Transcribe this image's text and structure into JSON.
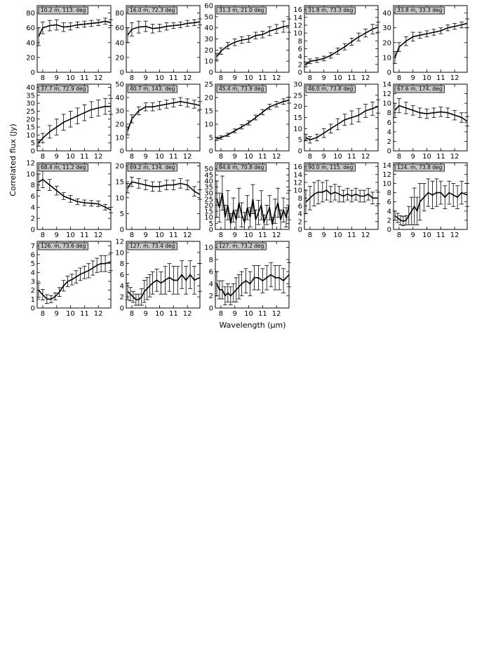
{
  "figure": {
    "xlabel": "Wavelength (μm)",
    "ylabel": "Correlated flux (Jy)",
    "x_ticks": [
      8,
      9,
      10,
      11,
      12
    ]
  },
  "chart_data": [
    {
      "type": "line",
      "label": "10.2 m, 113. deg",
      "xlim": [
        7.6,
        12.9
      ],
      "ylim": [
        0,
        90
      ],
      "y_ticks": [
        0,
        20,
        40,
        60,
        80
      ],
      "x": [
        7.7,
        8.0,
        8.5,
        9.0,
        9.5,
        10.0,
        10.5,
        11.0,
        11.5,
        12.0,
        12.5,
        12.9
      ],
      "y": [
        48,
        60,
        63,
        64,
        61,
        62,
        64,
        65,
        66,
        67,
        69,
        67
      ],
      "err": [
        12,
        8,
        7,
        7,
        6,
        5,
        4,
        4,
        4,
        4,
        4,
        4
      ]
    },
    {
      "type": "line",
      "label": "16.0 m, 72.3 deg",
      "xlim": [
        7.6,
        12.9
      ],
      "ylim": [
        0,
        90
      ],
      "y_ticks": [
        0,
        20,
        40,
        60,
        80
      ],
      "x": [
        7.7,
        8.0,
        8.5,
        9.0,
        9.5,
        10.0,
        10.5,
        11.0,
        11.5,
        12.0,
        12.5,
        12.9
      ],
      "y": [
        50,
        58,
        61,
        62,
        59,
        60,
        62,
        63,
        64,
        66,
        67,
        68
      ],
      "err": [
        10,
        9,
        8,
        7,
        6,
        5,
        5,
        4,
        4,
        4,
        4,
        4
      ]
    },
    {
      "type": "line",
      "label": "31.3 m, 21.0 deg",
      "xlim": [
        7.6,
        12.9
      ],
      "ylim": [
        0,
        60
      ],
      "y_ticks": [
        0,
        10,
        20,
        30,
        40,
        50,
        60
      ],
      "x": [
        7.7,
        8.0,
        8.5,
        9.0,
        9.5,
        10.0,
        10.5,
        11.0,
        11.5,
        12.0,
        12.5,
        12.9
      ],
      "y": [
        14,
        19,
        24,
        27,
        29,
        30,
        33,
        34,
        37,
        39,
        41,
        42
      ],
      "err": [
        3,
        3,
        3,
        3,
        3,
        3,
        3,
        3,
        4,
        4,
        5,
        6
      ]
    },
    {
      "type": "line",
      "label": "31.8 m, 73.3 deg",
      "xlim": [
        7.6,
        12.9
      ],
      "ylim": [
        0,
        17
      ],
      "y_ticks": [
        0,
        2,
        4,
        6,
        8,
        10,
        12,
        14,
        16
      ],
      "x": [
        7.7,
        8.0,
        8.5,
        9.0,
        9.5,
        10.0,
        10.5,
        11.0,
        11.5,
        12.0,
        12.5,
        12.9
      ],
      "y": [
        2.0,
        2.8,
        3.1,
        3.5,
        4.3,
        5.4,
        6.5,
        7.8,
        9.0,
        10.0,
        11.0,
        11.5
      ],
      "err": [
        0.6,
        0.6,
        0.6,
        0.6,
        0.7,
        0.8,
        0.8,
        0.9,
        1.0,
        1.0,
        1.2,
        1.3
      ]
    },
    {
      "type": "line",
      "label": "33.8 m, 33.3 deg",
      "xlim": [
        7.6,
        12.9
      ],
      "ylim": [
        0,
        45
      ],
      "y_ticks": [
        0,
        10,
        20,
        30,
        40
      ],
      "x": [
        7.7,
        8.0,
        8.5,
        9.0,
        9.5,
        10.0,
        10.5,
        11.0,
        11.5,
        12.0,
        12.5,
        12.9
      ],
      "y": [
        10,
        17,
        21,
        24,
        25,
        26,
        27,
        28,
        30,
        31,
        32,
        33
      ],
      "err": [
        4,
        3,
        3,
        3,
        2,
        2,
        2,
        2,
        2,
        2,
        2,
        3
      ]
    },
    {
      "type": "line",
      "label": "37.7 m, 72.9 deg",
      "xlim": [
        7.6,
        12.9
      ],
      "ylim": [
        0,
        42
      ],
      "y_ticks": [
        0,
        5,
        10,
        15,
        20,
        25,
        30,
        35,
        40
      ],
      "x": [
        7.7,
        8.0,
        8.5,
        9.0,
        9.5,
        10.0,
        10.5,
        11.0,
        11.5,
        12.0,
        12.5,
        12.9
      ],
      "y": [
        5,
        8,
        12,
        15,
        18,
        20,
        22,
        24,
        26,
        27,
        28,
        28
      ],
      "err": [
        2,
        3,
        4,
        5,
        5,
        5,
        5,
        5,
        5,
        5,
        5,
        5
      ]
    },
    {
      "type": "line",
      "label": "40.7 m, 143. deg",
      "xlim": [
        7.6,
        12.9
      ],
      "ylim": [
        0,
        50
      ],
      "y_ticks": [
        0,
        10,
        20,
        30,
        40,
        50
      ],
      "x": [
        7.7,
        8.0,
        8.5,
        9.0,
        9.5,
        10.0,
        10.5,
        11.0,
        11.5,
        12.0,
        12.5,
        12.9
      ],
      "y": [
        15,
        24,
        30,
        33,
        33,
        34,
        35,
        36,
        37,
        36,
        35,
        34
      ],
      "err": [
        3,
        3,
        3,
        3,
        3,
        3,
        3,
        3,
        3,
        3,
        3,
        3
      ]
    },
    {
      "type": "line",
      "label": "45.4 m, 73.9 deg",
      "xlim": [
        7.6,
        12.9
      ],
      "ylim": [
        0,
        25
      ],
      "y_ticks": [
        0,
        5,
        10,
        15,
        20,
        25
      ],
      "x": [
        7.7,
        8.0,
        8.5,
        9.0,
        9.5,
        10.0,
        10.5,
        11.0,
        11.5,
        12.0,
        12.5,
        12.9
      ],
      "y": [
        4.5,
        5.0,
        6.0,
        7.5,
        9.0,
        10.5,
        12.5,
        14.5,
        16.5,
        17.5,
        18.5,
        19.0
      ],
      "err": [
        0.6,
        0.6,
        0.6,
        0.7,
        0.8,
        0.8,
        0.9,
        1.0,
        1.0,
        1.0,
        1.0,
        1.1
      ]
    },
    {
      "type": "line",
      "label": "46.0 m, 73.8 deg",
      "xlim": [
        7.6,
        12.9
      ],
      "ylim": [
        0,
        30
      ],
      "y_ticks": [
        0,
        5,
        10,
        15,
        20,
        25,
        30
      ],
      "x": [
        7.7,
        8.0,
        8.5,
        9.0,
        9.5,
        10.0,
        10.5,
        11.0,
        11.5,
        12.0,
        12.5,
        12.9
      ],
      "y": [
        6,
        5,
        6,
        8,
        10,
        12,
        14,
        15,
        16,
        18,
        19,
        20
      ],
      "err": [
        1.5,
        1.5,
        1.5,
        2,
        2,
        2.5,
        2.5,
        3,
        3,
        3,
        3,
        3
      ]
    },
    {
      "type": "line",
      "label": "67.6 m, 174. deg",
      "xlim": [
        7.6,
        12.9
      ],
      "ylim": [
        0,
        14
      ],
      "y_ticks": [
        0,
        2,
        4,
        6,
        8,
        10,
        12,
        14
      ],
      "x": [
        7.7,
        8.0,
        8.5,
        9.0,
        9.5,
        10.0,
        10.5,
        11.0,
        11.5,
        12.0,
        12.5,
        12.9
      ],
      "y": [
        8.5,
        9.5,
        9.0,
        8.5,
        8.0,
        7.8,
        8.0,
        8.2,
        8.0,
        7.5,
        7.0,
        6.2
      ],
      "err": [
        1.5,
        1.5,
        1.2,
        1.0,
        1.0,
        1.0,
        1.0,
        1.0,
        1.0,
        1.0,
        1.0,
        1.0
      ]
    },
    {
      "type": "line",
      "label": "68.4 m, 11.2 deg",
      "xlim": [
        7.6,
        12.9
      ],
      "ylim": [
        0,
        12
      ],
      "y_ticks": [
        0,
        2,
        4,
        6,
        8,
        10,
        12
      ],
      "x": [
        7.7,
        8.0,
        8.5,
        9.0,
        9.5,
        10.0,
        10.5,
        11.0,
        11.5,
        12.0,
        12.5,
        12.9
      ],
      "y": [
        8.5,
        9.0,
        8.0,
        7.0,
        6.0,
        5.5,
        5.0,
        4.8,
        4.7,
        4.6,
        4.0,
        3.5
      ],
      "err": [
        1.5,
        1.5,
        1.0,
        0.8,
        0.6,
        0.6,
        0.5,
        0.5,
        0.5,
        0.5,
        0.5,
        0.5
      ]
    },
    {
      "type": "line",
      "label": "69.2 m, 134. deg",
      "xlim": [
        7.6,
        12.9
      ],
      "ylim": [
        0,
        21
      ],
      "y_ticks": [
        0,
        5,
        10,
        15,
        20
      ],
      "x": [
        7.7,
        8.0,
        8.5,
        9.0,
        9.5,
        10.0,
        10.5,
        11.0,
        11.5,
        12.0,
        12.5,
        12.9
      ],
      "y": [
        13,
        15,
        14.5,
        14,
        13.5,
        13.5,
        14,
        14,
        14.5,
        14,
        12,
        11
      ],
      "err": [
        1.5,
        1.5,
        1.5,
        1.5,
        1.5,
        1.5,
        1.5,
        1.5,
        1.5,
        1.5,
        1.5,
        1.5
      ]
    },
    {
      "type": "line",
      "label": "84.6 m, 70.8 deg",
      "xlim": [
        7.6,
        12.9
      ],
      "ylim": [
        0,
        55
      ],
      "y_ticks": [
        0,
        5,
        10,
        15,
        20,
        25,
        30,
        35,
        40,
        45,
        50
      ],
      "x": [
        7.7,
        7.9,
        8.1,
        8.3,
        8.5,
        8.7,
        8.9,
        9.1,
        9.3,
        9.5,
        9.7,
        9.9,
        10.1,
        10.3,
        10.5,
        10.7,
        10.9,
        11.1,
        11.3,
        11.5,
        11.7,
        11.9,
        12.1,
        12.3,
        12.5,
        12.7,
        12.9
      ],
      "y": [
        25,
        18,
        30,
        10,
        20,
        5,
        16,
        8,
        22,
        12,
        6,
        18,
        10,
        25,
        8,
        14,
        20,
        6,
        12,
        18,
        4,
        15,
        22,
        8,
        16,
        10,
        20
      ],
      "err": [
        15,
        12,
        14,
        10,
        12,
        8,
        10,
        8,
        12,
        10,
        8,
        10,
        8,
        12,
        8,
        10,
        12,
        6,
        8,
        10,
        6,
        10,
        12,
        8,
        10,
        8,
        12
      ]
    },
    {
      "type": "line",
      "label": "90.0 m, 115. deg",
      "xlim": [
        7.6,
        12.9
      ],
      "ylim": [
        0,
        17
      ],
      "y_ticks": [
        0,
        2,
        4,
        6,
        8,
        10,
        12,
        14,
        16
      ],
      "x": [
        7.7,
        8.0,
        8.3,
        8.6,
        8.9,
        9.2,
        9.5,
        9.8,
        10.1,
        10.4,
        10.7,
        11.0,
        11.3,
        11.6,
        11.9,
        12.2,
        12.5,
        12.9
      ],
      "y": [
        7,
        8,
        9,
        9.5,
        9.5,
        10,
        9,
        9.5,
        9,
        8.5,
        9,
        8.5,
        9,
        8.5,
        8.5,
        9,
        8,
        8
      ],
      "err": [
        3,
        3,
        3,
        3,
        2.5,
        2.5,
        2,
        2,
        2,
        1.5,
        1.5,
        1.5,
        1.5,
        1.5,
        1.5,
        1.5,
        1.5,
        1.5
      ]
    },
    {
      "type": "line",
      "label": "124. m, 73.8 deg",
      "xlim": [
        7.6,
        12.9
      ],
      "ylim": [
        0,
        14.5
      ],
      "y_ticks": [
        0,
        2,
        4,
        6,
        8,
        10,
        12,
        14
      ],
      "x": [
        7.7,
        7.9,
        8.1,
        8.3,
        8.5,
        8.7,
        8.9,
        9.1,
        9.3,
        9.5,
        9.8,
        10.1,
        10.4,
        10.7,
        11.0,
        11.3,
        11.6,
        11.9,
        12.2,
        12.5,
        12.9
      ],
      "y": [
        3,
        2.5,
        2,
        1.8,
        2,
        3,
        4,
        5,
        4,
        6,
        7,
        8,
        7.5,
        8,
        8,
        7,
        8,
        7.5,
        7,
        8,
        7.5
      ],
      "err": [
        1,
        1,
        1,
        1,
        1,
        2,
        3,
        4,
        3,
        4,
        3,
        3,
        3,
        3,
        2.5,
        2.5,
        2.5,
        2.5,
        2.5,
        2.5,
        2.5
      ]
    },
    {
      "type": "line",
      "label": "126. m, 73.6 deg",
      "xlim": [
        7.6,
        12.9
      ],
      "ylim": [
        0,
        7.5
      ],
      "y_ticks": [
        0,
        1,
        2,
        3,
        4,
        5,
        6,
        7
      ],
      "x": [
        7.7,
        8.0,
        8.3,
        8.6,
        8.9,
        9.2,
        9.5,
        9.8,
        10.1,
        10.4,
        10.7,
        11.0,
        11.3,
        11.6,
        11.9,
        12.2,
        12.5,
        12.9
      ],
      "y": [
        2.0,
        1.5,
        1.0,
        1.0,
        1.3,
        1.8,
        2.5,
        3.0,
        3.2,
        3.5,
        3.8,
        4.0,
        4.2,
        4.5,
        4.8,
        5.0,
        5.0,
        5.2
      ],
      "err": [
        0.8,
        0.6,
        0.5,
        0.4,
        0.4,
        0.5,
        0.6,
        0.6,
        0.6,
        0.7,
        0.7,
        0.7,
        0.8,
        0.8,
        0.8,
        0.9,
        0.9,
        1.0
      ]
    },
    {
      "type": "line",
      "label": "127. m, 73.4 deg",
      "xlim": [
        7.6,
        12.9
      ],
      "ylim": [
        0,
        12
      ],
      "y_ticks": [
        0,
        2,
        4,
        6,
        8,
        10,
        12
      ],
      "x": [
        7.7,
        7.9,
        8.1,
        8.3,
        8.5,
        8.7,
        8.9,
        9.1,
        9.3,
        9.5,
        9.8,
        10.1,
        10.4,
        10.7,
        11.0,
        11.3,
        11.6,
        11.9,
        12.2,
        12.5,
        12.9
      ],
      "y": [
        3,
        2.5,
        2,
        1.5,
        1.5,
        2,
        3,
        3.5,
        4,
        4.5,
        5,
        4.5,
        5,
        5.5,
        5,
        5,
        6,
        5,
        6,
        5,
        5.5
      ],
      "err": [
        1.5,
        1.2,
        1.0,
        1.0,
        1.0,
        1.5,
        2,
        2,
        2,
        2,
        2,
        2,
        2.5,
        2.5,
        2.5,
        2.5,
        2.5,
        2.5,
        2.5,
        2.5,
        2.5
      ]
    },
    {
      "type": "line",
      "label": "127. m, 73.2 deg",
      "xlim": [
        7.6,
        12.9
      ],
      "ylim": [
        0,
        11
      ],
      "y_ticks": [
        0,
        2,
        4,
        6,
        8,
        10
      ],
      "x": [
        7.7,
        7.9,
        8.1,
        8.3,
        8.5,
        8.7,
        8.9,
        9.1,
        9.3,
        9.5,
        9.8,
        10.1,
        10.4,
        10.7,
        11.0,
        11.3,
        11.6,
        11.9,
        12.2,
        12.5,
        12.9
      ],
      "y": [
        4,
        3,
        3,
        2,
        2.5,
        2,
        2.5,
        3,
        3.5,
        4,
        4.5,
        4,
        5,
        5,
        4.5,
        5,
        5.5,
        5,
        5,
        4.5,
        5.5
      ],
      "err": [
        2,
        1.5,
        1.5,
        1.5,
        1.5,
        1.5,
        1.5,
        2,
        2,
        2,
        2,
        2,
        2,
        2,
        2,
        2,
        2,
        2,
        2,
        2,
        2
      ]
    }
  ]
}
